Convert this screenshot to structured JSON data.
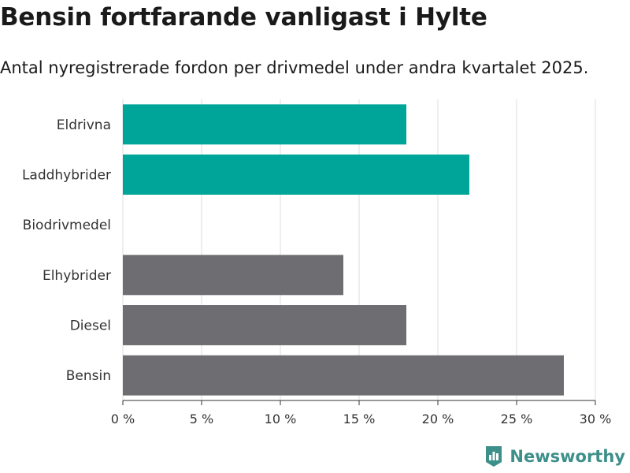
{
  "header": {
    "title": "Bensin fortfarande vanligast i Hylte",
    "subtitle": "Antal nyregistrerade fordon per drivmedel under andra kvartalet 2025."
  },
  "brand": {
    "name": "Newsworthy",
    "icon": "newsworthy-logo-icon",
    "color": "#3d8f8a"
  },
  "chart_data": {
    "type": "bar",
    "orientation": "horizontal",
    "title": "Bensin fortfarande vanligast i Hylte",
    "subtitle": "Antal nyregistrerade fordon per drivmedel under andra kvartalet 2025.",
    "categories": [
      "Eldrivna",
      "Laddhybrider",
      "Biodrivmedel",
      "Elhybrider",
      "Diesel",
      "Bensin"
    ],
    "values": [
      18,
      22,
      0,
      14,
      18,
      28
    ],
    "colors": [
      "#00a59a",
      "#00a59a",
      "#00a59a",
      "#6e6d72",
      "#6e6d72",
      "#6e6d72"
    ],
    "xlim": [
      0,
      30
    ],
    "xticks": [
      0,
      5,
      10,
      15,
      20,
      25,
      30
    ],
    "tick_labels": [
      "0 %",
      "5 %",
      "10 %",
      "15 %",
      "20 %",
      "25 %",
      "30 %"
    ],
    "xlabel": "",
    "ylabel": "",
    "grid": true
  }
}
